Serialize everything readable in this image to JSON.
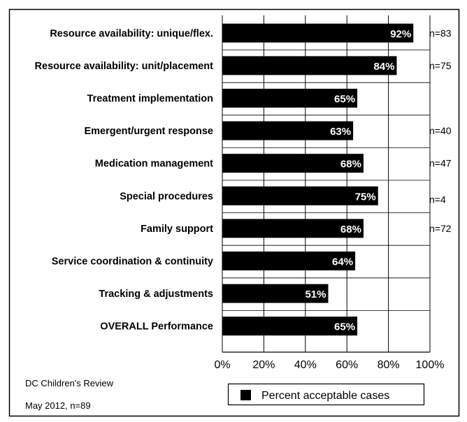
{
  "chart_data": {
    "type": "bar",
    "orientation": "horizontal",
    "title": "",
    "categories": [
      "Resource availability: unique/flex.",
      "Resource availability: unit/placement",
      "Treatment implementation",
      "Emergent/urgent response",
      "Medication management",
      "Special procedures",
      "Family support",
      "Service coordination & continuity",
      "Tracking & adjustments",
      "OVERALL  Performance"
    ],
    "series": [
      {
        "name": "Percent acceptable cases",
        "values": [
          92,
          84,
          65,
          63,
          68,
          75,
          68,
          64,
          51,
          65
        ]
      }
    ],
    "value_labels": [
      "92%",
      "84%",
      "65%",
      "63%",
      "68%",
      "75%",
      "68%",
      "64%",
      "51%",
      "65%"
    ],
    "sample_sizes": [
      "n=83",
      "n=75",
      "",
      "n=40",
      "n=47",
      "n=4",
      "n=72",
      "",
      "",
      ""
    ],
    "xlim": [
      0,
      100
    ],
    "x_ticks": [
      "0%",
      "20%",
      "40%",
      "60%",
      "80%",
      "100%"
    ],
    "grid": "vertical",
    "legend": "bottom-center",
    "bar_color": "#000000"
  },
  "footer": {
    "line1": "DC Children's Review",
    "line2": "May 2012, n=89"
  }
}
